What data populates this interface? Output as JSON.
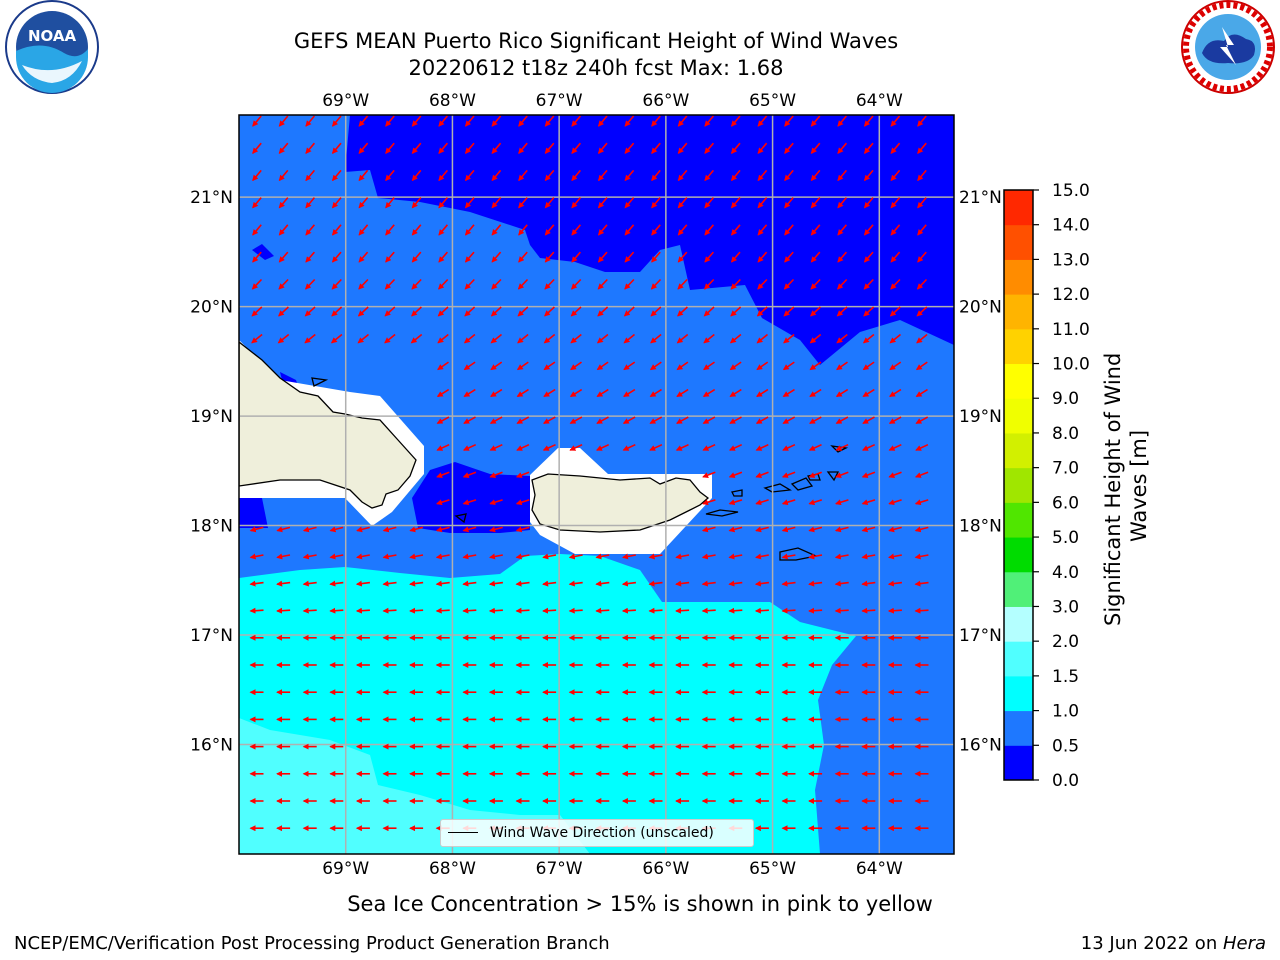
{
  "title": {
    "line1": "GEFS MEAN Puerto Rico Significant Height of Wind Waves",
    "line2": "20220612 t18z 240h fcst   Max: 1.68"
  },
  "logos": {
    "left": {
      "icon": "noaa-logo-icon",
      "text": "NOAA",
      "ring_text": "NATIONAL OCEANIC AND ATMOSPHERIC ADMINISTRATION · U.S. DEPARTMENT OF COMMERCE"
    },
    "right": {
      "icon": "nws-logo-icon",
      "ring_text": "NATIONAL WEATHER SERVICE"
    }
  },
  "map": {
    "lon_ticks": [
      "69°W",
      "68°W",
      "67°W",
      "66°W",
      "65°W",
      "64°W"
    ],
    "lat_ticks": [
      "21°N",
      "20°N",
      "19°N",
      "18°N",
      "17°N",
      "16°N"
    ],
    "lon_values": [
      -69,
      -68,
      -67,
      -66,
      -65,
      -64
    ],
    "lat_values": [
      21,
      20,
      19,
      18,
      17,
      16
    ],
    "extent": {
      "lon_min": -70,
      "lon_max": -63.3,
      "lat_min": 15,
      "lat_max": 21.75
    },
    "legend": "Wind Wave Direction (unscaled)",
    "arrow_color": "#ff0000",
    "land_color": "#efefdb"
  },
  "colorbar": {
    "label": "Significant Height of Wind Waves [m]",
    "label_line1": "Significant Height of Wind",
    "label_line2": "Waves [m]",
    "ticks": [
      "0.0",
      "0.5",
      "1.0",
      "1.5",
      "2.0",
      "3.0",
      "4.0",
      "5.0",
      "6.0",
      "7.0",
      "8.0",
      "9.0",
      "10.0",
      "11.0",
      "12.0",
      "13.0",
      "14.0",
      "15.0"
    ],
    "colors": [
      "#0000ff",
      "#1e78ff",
      "#00ffff",
      "#50ffff",
      "#b4ffff",
      "#50f078",
      "#00dc00",
      "#50e600",
      "#a0e600",
      "#d2f000",
      "#f0ff00",
      "#ffff00",
      "#ffd200",
      "#ffb400",
      "#ff8c00",
      "#ff5000",
      "#ff2800"
    ]
  },
  "subtitle": "Sea Ice Concentration > 15% is shown in pink to yellow",
  "footer": {
    "left": "NCEP/EMC/Verification Post Processing Product Generation Branch",
    "right_date": "13 Jun 2022 on ",
    "right_host": "Hera"
  }
}
